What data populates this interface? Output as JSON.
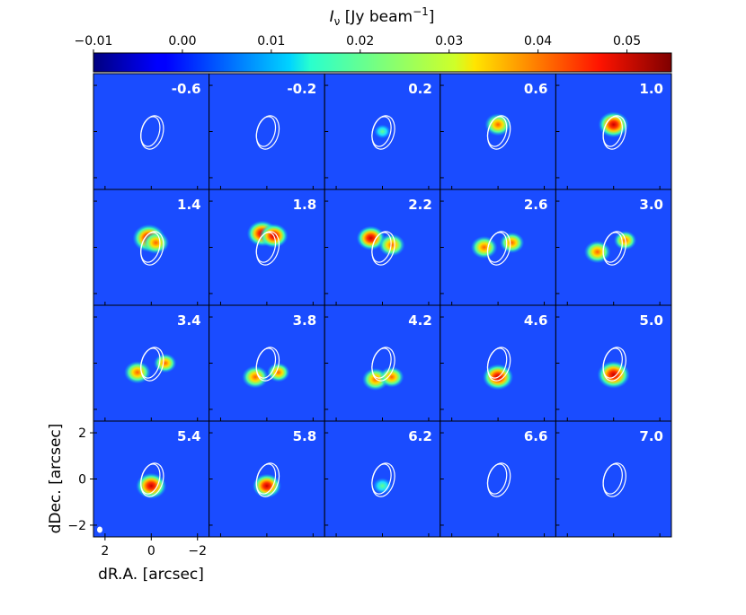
{
  "chart_data": {
    "type": "heatmap",
    "colorbar": {
      "label_main": "I",
      "label_sub": "ν",
      "label_unit": " [Jy beam",
      "label_sup": "−1",
      "label_close": "]",
      "ticks": [
        "−0.01",
        "0.00",
        "0.01",
        "0.02",
        "0.03",
        "0.04",
        "0.05"
      ],
      "tick_values": [
        -0.01,
        0.0,
        0.01,
        0.02,
        0.03,
        0.04,
        0.05
      ],
      "range": [
        -0.01,
        0.055
      ],
      "colormap": "jet"
    },
    "xlabel": "dR.A. [arcsec]",
    "ylabel": "dDec. [arcsec]",
    "xticks": [
      "2",
      "0",
      "−2"
    ],
    "yticks": [
      "2",
      "0",
      "−2"
    ],
    "axis_range_arcsec": [
      -2.5,
      2.5
    ],
    "panels": [
      {
        "label": "-0.6",
        "peak": 0.006,
        "blobs": []
      },
      {
        "label": "-0.2",
        "peak": 0.008,
        "blobs": []
      },
      {
        "label": "0.2",
        "peak": 0.014,
        "blobs": [
          {
            "dx": 0.0,
            "dy": 0.0,
            "amp": 0.014
          }
        ]
      },
      {
        "label": "0.6",
        "peak": 0.04,
        "blobs": [
          {
            "dx": 0.0,
            "dy": 0.3,
            "amp": 0.04
          }
        ]
      },
      {
        "label": "1.0",
        "peak": 0.05,
        "blobs": [
          {
            "dx": 0.0,
            "dy": 0.3,
            "amp": 0.05
          }
        ]
      },
      {
        "label": "1.4",
        "peak": 0.055,
        "blobs": [
          {
            "dx": 0.1,
            "dy": 0.4,
            "amp": 0.055
          },
          {
            "dx": -0.2,
            "dy": 0.2,
            "amp": 0.04
          }
        ]
      },
      {
        "label": "1.8",
        "peak": 0.055,
        "blobs": [
          {
            "dx": 0.2,
            "dy": 0.6,
            "amp": 0.05
          },
          {
            "dx": -0.3,
            "dy": 0.5,
            "amp": 0.045
          }
        ]
      },
      {
        "label": "2.2",
        "peak": 0.05,
        "blobs": [
          {
            "dx": 0.5,
            "dy": 0.4,
            "amp": 0.045
          },
          {
            "dx": -0.4,
            "dy": 0.1,
            "amp": 0.04
          }
        ]
      },
      {
        "label": "2.6",
        "peak": 0.045,
        "blobs": [
          {
            "dx": 0.6,
            "dy": 0.0,
            "amp": 0.04
          },
          {
            "dx": -0.6,
            "dy": 0.2,
            "amp": 0.035
          }
        ]
      },
      {
        "label": "3.0",
        "peak": 0.045,
        "blobs": [
          {
            "dx": 0.7,
            "dy": -0.2,
            "amp": 0.04
          },
          {
            "dx": -0.5,
            "dy": 0.3,
            "amp": 0.03
          }
        ]
      },
      {
        "label": "3.4",
        "peak": 0.045,
        "blobs": [
          {
            "dx": 0.6,
            "dy": -0.4,
            "amp": 0.04
          },
          {
            "dx": -0.6,
            "dy": 0.0,
            "amp": 0.03
          }
        ]
      },
      {
        "label": "3.8",
        "peak": 0.045,
        "blobs": [
          {
            "dx": 0.5,
            "dy": -0.6,
            "amp": 0.04
          },
          {
            "dx": -0.5,
            "dy": -0.4,
            "amp": 0.03
          }
        ]
      },
      {
        "label": "4.2",
        "peak": 0.045,
        "blobs": [
          {
            "dx": 0.3,
            "dy": -0.7,
            "amp": 0.04
          },
          {
            "dx": -0.4,
            "dy": -0.6,
            "amp": 0.035
          }
        ]
      },
      {
        "label": "4.6",
        "peak": 0.05,
        "blobs": [
          {
            "dx": 0.0,
            "dy": -0.6,
            "amp": 0.05
          }
        ]
      },
      {
        "label": "5.0",
        "peak": 0.055,
        "blobs": [
          {
            "dx": 0.0,
            "dy": -0.5,
            "amp": 0.055
          }
        ]
      },
      {
        "label": "5.4",
        "peak": 0.05,
        "blobs": [
          {
            "dx": 0.0,
            "dy": -0.3,
            "amp": 0.05
          }
        ]
      },
      {
        "label": "5.8",
        "peak": 0.045,
        "blobs": [
          {
            "dx": 0.0,
            "dy": -0.3,
            "amp": 0.045
          }
        ]
      },
      {
        "label": "6.2",
        "peak": 0.02,
        "blobs": [
          {
            "dx": 0.0,
            "dy": -0.3,
            "amp": 0.02
          }
        ]
      },
      {
        "label": "6.6",
        "peak": 0.01,
        "blobs": []
      },
      {
        "label": "7.0",
        "peak": 0.008,
        "blobs": []
      }
    ],
    "contours": "two white elliptical contours centered near the origin"
  }
}
